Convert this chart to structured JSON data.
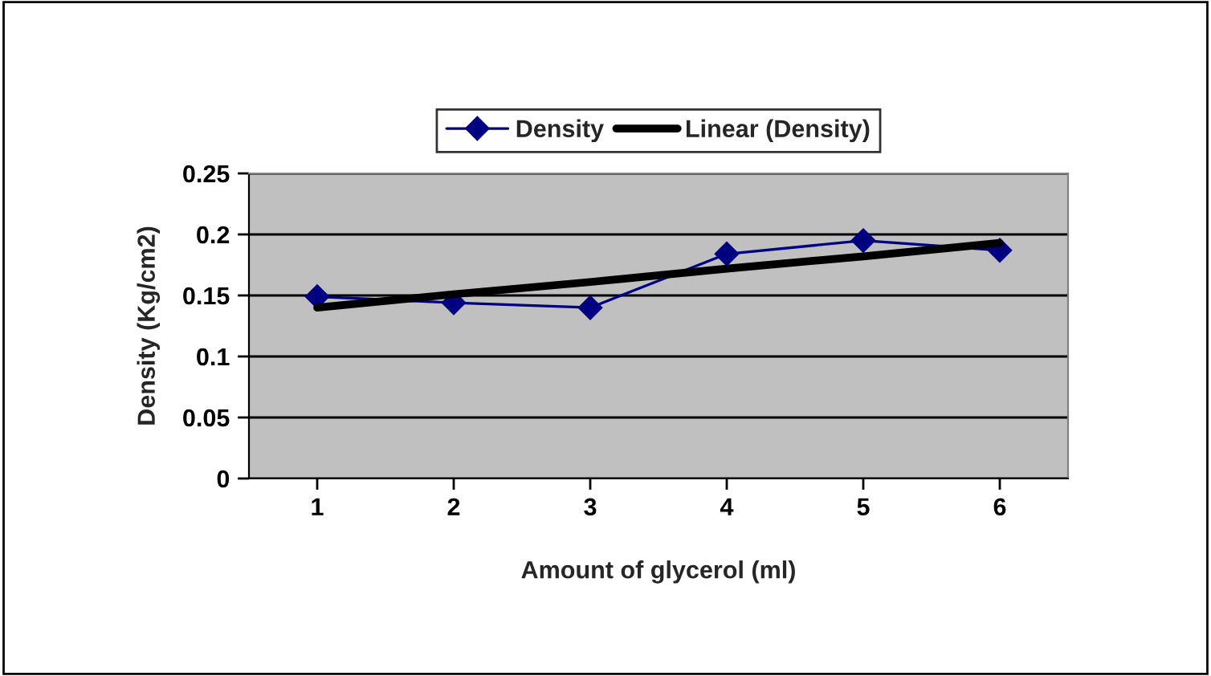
{
  "chart_data": {
    "type": "line",
    "xlabel": "Amount of glycerol (ml)",
    "ylabel": "Density (Kg/cm2)",
    "categories": [
      "1",
      "2",
      "3",
      "4",
      "5",
      "6"
    ],
    "series": [
      {
        "name": "Density",
        "color": "#000080",
        "values": [
          0.149,
          0.144,
          0.14,
          0.184,
          0.195,
          0.187
        ],
        "marker": "diamond",
        "line_style": "solid"
      },
      {
        "name": "Linear (Density)",
        "color": "#000000",
        "values": [
          0.14,
          0.151,
          0.161,
          0.172,
          0.182,
          0.193
        ],
        "marker": "none",
        "line_style": "solid"
      }
    ],
    "ylim": [
      0,
      0.25
    ],
    "yticks": [
      0,
      0.05,
      0.1,
      0.15,
      0.2,
      0.25
    ],
    "grid": "y",
    "legend": "top"
  }
}
